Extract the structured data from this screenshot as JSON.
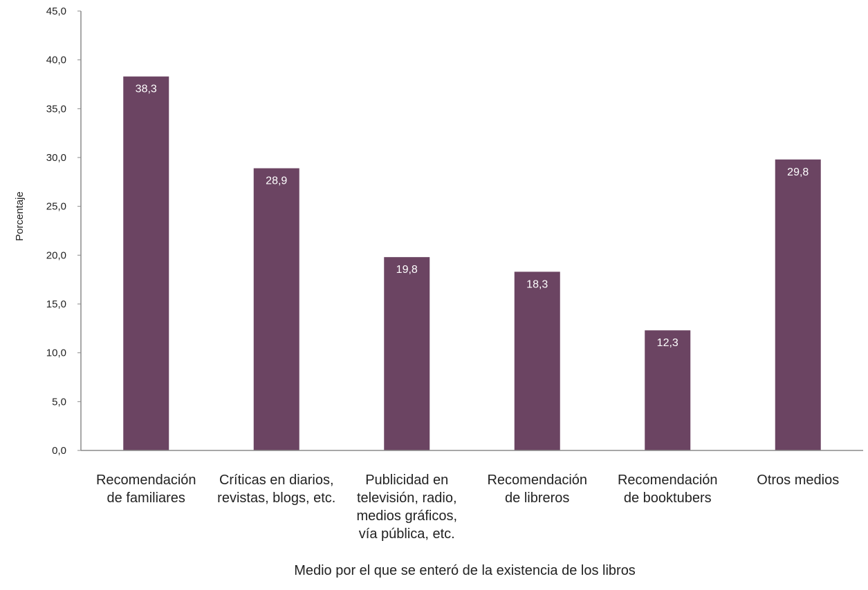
{
  "chart_data": {
    "type": "bar",
    "title": "",
    "xlabel": "Medio por el que se enteró de la existencia de los libros",
    "ylabel": "Porcentaje",
    "ylim": [
      0,
      45
    ],
    "yticks": [
      "0,0",
      "5,0",
      "10,0",
      "15,0",
      "20,0",
      "25,0",
      "30,0",
      "35,0",
      "40,0",
      "45,0"
    ],
    "grid": false,
    "categories": [
      [
        "Recomendación",
        "de familiares"
      ],
      [
        "Críticas en diarios,",
        "revistas, blogs, etc."
      ],
      [
        "Publicidad en",
        "televisión, radio,",
        "medios gráficos,",
        "vía pública, etc."
      ],
      [
        "Recomendación",
        "de libreros"
      ],
      [
        "Recomendación",
        "de booktubers"
      ],
      [
        "Otros medios"
      ]
    ],
    "values": [
      38.3,
      28.9,
      19.8,
      18.3,
      12.3,
      29.8
    ],
    "data_labels": [
      "38,3",
      "28,9",
      "19,8",
      "18,3",
      "12,3",
      "29,8"
    ],
    "bar_color": "#6b4462",
    "axis_color": "#8a8a8a"
  }
}
